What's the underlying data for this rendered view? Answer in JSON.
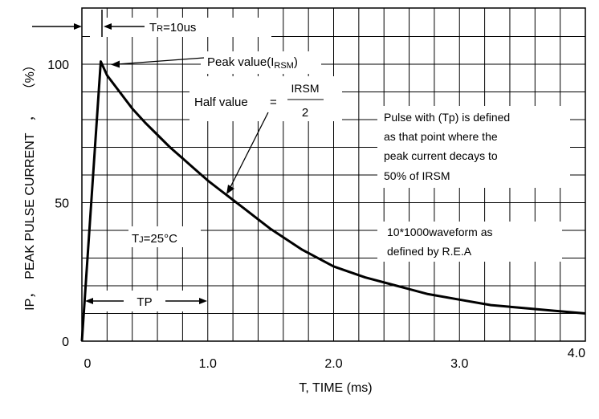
{
  "chart_data": {
    "type": "line",
    "title": "",
    "xlabel": "T, TIME (ms)",
    "ylabel_parts": {
      "ip": "IP",
      "comma1": "，",
      "peak": "PEAK PULSE CURRENT",
      "comma2": "，",
      "unit": "（%）"
    },
    "xlim": [
      0,
      4.0
    ],
    "ylim": [
      0,
      110
    ],
    "x_ticks": [
      {
        "value": 0,
        "label": "0"
      },
      {
        "value": 1.0,
        "label": "1.0"
      },
      {
        "value": 2.0,
        "label": "2.0"
      },
      {
        "value": 3.0,
        "label": "3.0"
      },
      {
        "value": 4.0,
        "label": "4.0"
      }
    ],
    "y_ticks": [
      {
        "value": 0,
        "label": "0"
      },
      {
        "value": 50,
        "label": "50"
      },
      {
        "value": 100,
        "label": "100"
      }
    ],
    "grid": true,
    "series": [
      {
        "x": [
          0,
          0.15,
          0.2,
          0.3,
          0.4,
          0.5,
          0.6,
          0.7,
          0.8,
          0.9,
          1.0,
          1.1,
          1.2,
          1.3,
          1.4,
          1.5,
          1.75,
          2.0,
          2.25,
          2.5,
          2.75,
          3.0,
          3.25,
          3.5,
          3.75,
          4.0
        ],
        "y": [
          0,
          101,
          96,
          90,
          84,
          79,
          74.5,
          70,
          66,
          62,
          58,
          54.5,
          51,
          47.5,
          44,
          40.5,
          33,
          27,
          23,
          20,
          17,
          15,
          13,
          12,
          11,
          10
        ]
      }
    ],
    "annotations": {
      "tr": {
        "t": "T",
        "sub": "R",
        "rest": "=10us"
      },
      "peak": {
        "text": "Peak value(I",
        "sub": "RSM",
        "close": ")"
      },
      "half": {
        "label": "Half value",
        "eq": "=",
        "numerator": "IRSM",
        "denominator": "2"
      },
      "pulse": [
        "Pulse with (Tp) is defined",
        "as that point where the",
        "peak current decays to",
        "50% of  IRSM"
      ],
      "waveform": [
        "10*1000waveform as",
        "defined by R.E.A"
      ],
      "tj": {
        "t": "T",
        "sub": "J",
        "rest": "=25°C"
      },
      "tp": "TP"
    }
  }
}
